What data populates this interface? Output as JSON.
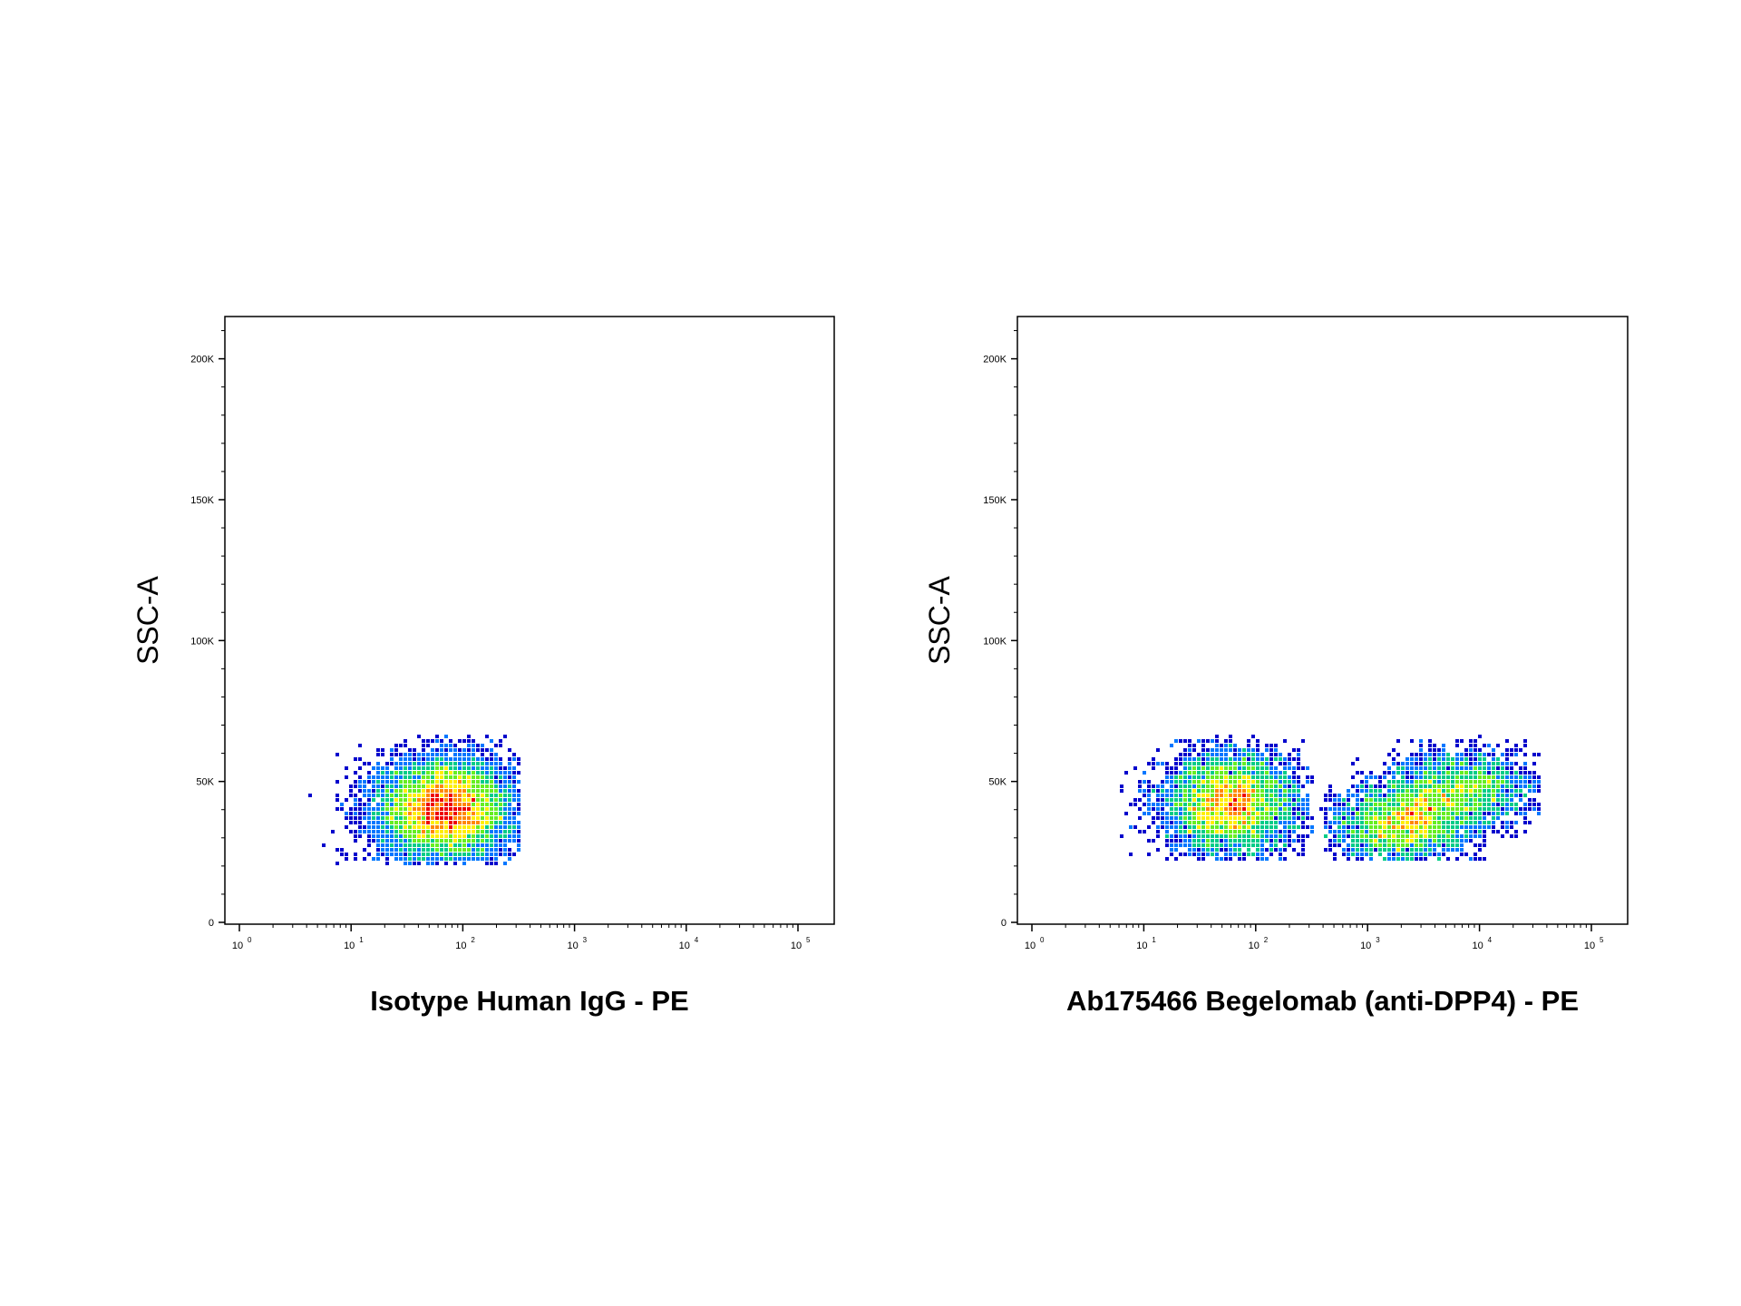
{
  "chart_data": [
    {
      "type": "scatter",
      "subtype": "density-dot-plot",
      "xlabel": "Isotype Human IgG - PE",
      "ylabel": "SSC-A",
      "x_scale": "log",
      "xlim": [
        1,
        100000
      ],
      "ylim": [
        0,
        215000
      ],
      "x_ticks": [
        {
          "value": 1,
          "base": "10",
          "exp": "0"
        },
        {
          "value": 10,
          "base": "10",
          "exp": "1"
        },
        {
          "value": 100,
          "base": "10",
          "exp": "2"
        },
        {
          "value": 1000,
          "base": "10",
          "exp": "3"
        },
        {
          "value": 10000,
          "base": "10",
          "exp": "4"
        },
        {
          "value": 100000,
          "base": "10",
          "exp": "5"
        }
      ],
      "y_ticks": [
        {
          "value": 0,
          "label": "0"
        },
        {
          "value": 50000,
          "label": "50K"
        },
        {
          "value": 100000,
          "label": "100K"
        },
        {
          "value": 150000,
          "label": "150K"
        },
        {
          "value": 200000,
          "label": "200K"
        }
      ],
      "populations": [
        {
          "x_center": 70,
          "y_center": 40000,
          "x_spread_decades": 0.3,
          "y_spread": 9000,
          "relative_size": 1.0,
          "x_range": [
            3,
            330
          ],
          "y_range": [
            21000,
            66000
          ]
        }
      ],
      "color_scale": [
        "#0000cc",
        "#0077ff",
        "#00cc88",
        "#66ee22",
        "#ffee00",
        "#ff8800",
        "#ee0000"
      ],
      "grid": false
    },
    {
      "type": "scatter",
      "subtype": "density-dot-plot",
      "xlabel": "Ab175466 Begelomab (anti-DPP4) - PE",
      "ylabel": "SSC-A",
      "x_scale": "log",
      "xlim": [
        1,
        100000
      ],
      "ylim": [
        0,
        215000
      ],
      "x_ticks": [
        {
          "value": 1,
          "base": "10",
          "exp": "0"
        },
        {
          "value": 10,
          "base": "10",
          "exp": "1"
        },
        {
          "value": 100,
          "base": "10",
          "exp": "2"
        },
        {
          "value": 1000,
          "base": "10",
          "exp": "3"
        },
        {
          "value": 10000,
          "base": "10",
          "exp": "4"
        },
        {
          "value": 100000,
          "base": "10",
          "exp": "5"
        }
      ],
      "y_ticks": [
        {
          "value": 0,
          "label": "0"
        },
        {
          "value": 50000,
          "label": "50K"
        },
        {
          "value": 100000,
          "label": "100K"
        },
        {
          "value": 150000,
          "label": "150K"
        },
        {
          "value": 200000,
          "label": "200K"
        }
      ],
      "populations": [
        {
          "x_center": 60,
          "y_center": 42000,
          "x_spread_decades": 0.3,
          "y_spread": 9000,
          "relative_size": 0.55,
          "x_range": [
            2,
            330
          ],
          "y_range": [
            22000,
            66000
          ]
        },
        {
          "x_center": 2000,
          "y_center": 35000,
          "x_spread_decades": 0.3,
          "y_spread": 7000,
          "relative_size": 0.35,
          "x_range": [
            400,
            12000
          ],
          "y_range": [
            22000,
            60000
          ]
        },
        {
          "x_center": 7000,
          "y_center": 47000,
          "x_spread_decades": 0.35,
          "y_spread": 7000,
          "relative_size": 0.25,
          "x_range": [
            1500,
            35000
          ],
          "y_range": [
            30000,
            66000
          ]
        }
      ],
      "color_scale": [
        "#0000cc",
        "#0077ff",
        "#00cc88",
        "#66ee22",
        "#ffee00",
        "#ff8800",
        "#ee0000"
      ],
      "grid": false
    }
  ]
}
